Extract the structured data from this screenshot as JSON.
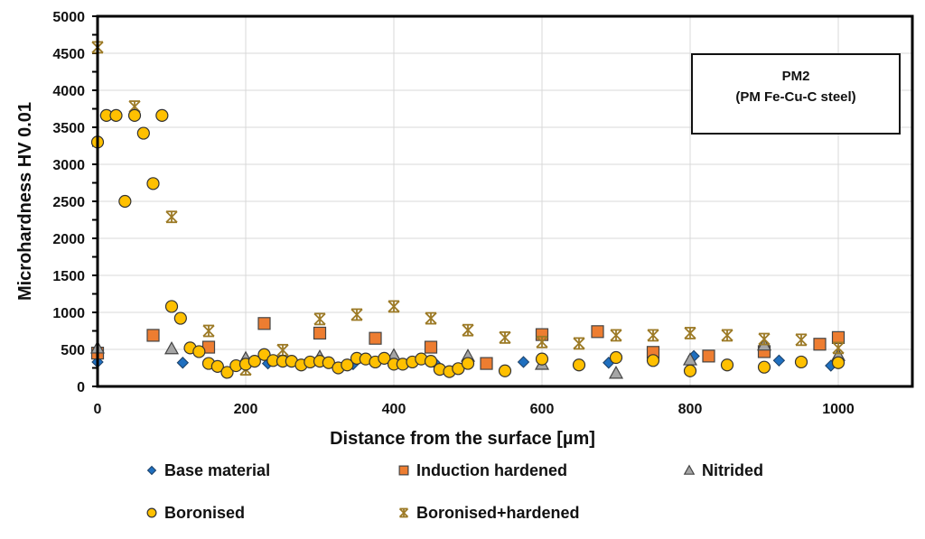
{
  "chart_data": {
    "type": "scatter",
    "title": "",
    "xlabel": "Distance from the surface [µm]",
    "ylabel": "Microhardness HV 0.01",
    "xlim": [
      0,
      1100
    ],
    "ylim": [
      0,
      5000
    ],
    "x_ticks": [
      0,
      200,
      400,
      600,
      800,
      1000
    ],
    "y_ticks": [
      0,
      500,
      1000,
      1500,
      2000,
      2500,
      3000,
      3500,
      4000,
      4500,
      5000
    ],
    "grid": true,
    "legend_position": "bottom",
    "annotation": {
      "line1": "PM2",
      "line2": "(PM Fe-Cu-C steel)"
    },
    "series": [
      {
        "name": "Base material",
        "marker": "diamond",
        "color": "#1f6fbf",
        "points": [
          [
            0,
            330
          ],
          [
            115,
            320
          ],
          [
            230,
            310
          ],
          [
            345,
            300
          ],
          [
            455,
            320
          ],
          [
            575,
            330
          ],
          [
            690,
            320
          ],
          [
            805,
            410
          ],
          [
            920,
            350
          ],
          [
            990,
            280
          ]
        ]
      },
      {
        "name": "Induction hardened",
        "marker": "square",
        "color": "#ed7d31",
        "points": [
          [
            0,
            450
          ],
          [
            75,
            690
          ],
          [
            150,
            530
          ],
          [
            225,
            850
          ],
          [
            300,
            720
          ],
          [
            375,
            650
          ],
          [
            450,
            530
          ],
          [
            525,
            310
          ],
          [
            600,
            700
          ],
          [
            675,
            740
          ],
          [
            750,
            460
          ],
          [
            825,
            410
          ],
          [
            900,
            470
          ],
          [
            975,
            570
          ],
          [
            1000,
            660
          ]
        ]
      },
      {
        "name": "Nitrided",
        "marker": "triangle",
        "color": "#a5a5a5",
        "points": [
          [
            0,
            520
          ],
          [
            100,
            510
          ],
          [
            200,
            380
          ],
          [
            300,
            400
          ],
          [
            400,
            420
          ],
          [
            500,
            410
          ],
          [
            600,
            300
          ],
          [
            700,
            180
          ],
          [
            800,
            360
          ],
          [
            900,
            560
          ],
          [
            1000,
            420
          ]
        ]
      },
      {
        "name": "Boronised",
        "marker": "circle",
        "color": "#ffc000",
        "points": [
          [
            0,
            3300
          ],
          [
            12,
            3660
          ],
          [
            25,
            3660
          ],
          [
            37,
            2500
          ],
          [
            50,
            3660
          ],
          [
            62,
            3420
          ],
          [
            75,
            2740
          ],
          [
            87,
            3660
          ],
          [
            100,
            1080
          ],
          [
            112,
            920
          ],
          [
            125,
            520
          ],
          [
            137,
            470
          ],
          [
            150,
            310
          ],
          [
            162,
            270
          ],
          [
            175,
            190
          ],
          [
            187,
            280
          ],
          [
            200,
            300
          ],
          [
            212,
            340
          ],
          [
            225,
            430
          ],
          [
            237,
            350
          ],
          [
            250,
            340
          ],
          [
            262,
            340
          ],
          [
            275,
            290
          ],
          [
            287,
            330
          ],
          [
            300,
            340
          ],
          [
            312,
            320
          ],
          [
            325,
            250
          ],
          [
            337,
            290
          ],
          [
            350,
            380
          ],
          [
            362,
            370
          ],
          [
            375,
            330
          ],
          [
            387,
            380
          ],
          [
            400,
            300
          ],
          [
            412,
            300
          ],
          [
            425,
            330
          ],
          [
            437,
            370
          ],
          [
            450,
            340
          ],
          [
            462,
            230
          ],
          [
            475,
            200
          ],
          [
            487,
            240
          ],
          [
            500,
            310
          ],
          [
            550,
            210
          ],
          [
            600,
            370
          ],
          [
            650,
            290
          ],
          [
            700,
            390
          ],
          [
            750,
            350
          ],
          [
            800,
            210
          ],
          [
            850,
            290
          ],
          [
            900,
            260
          ],
          [
            950,
            330
          ],
          [
            1000,
            320
          ]
        ]
      },
      {
        "name": "Boronised+hardened",
        "marker": "star",
        "color": "#9c7a26",
        "points": [
          [
            0,
            4580
          ],
          [
            50,
            3780
          ],
          [
            100,
            2290
          ],
          [
            150,
            750
          ],
          [
            200,
            230
          ],
          [
            250,
            490
          ],
          [
            300,
            910
          ],
          [
            350,
            970
          ],
          [
            400,
            1080
          ],
          [
            450,
            920
          ],
          [
            500,
            760
          ],
          [
            550,
            660
          ],
          [
            600,
            600
          ],
          [
            650,
            580
          ],
          [
            700,
            690
          ],
          [
            750,
            690
          ],
          [
            800,
            720
          ],
          [
            850,
            690
          ],
          [
            900,
            640
          ],
          [
            950,
            630
          ],
          [
            1000,
            520
          ]
        ]
      }
    ]
  }
}
